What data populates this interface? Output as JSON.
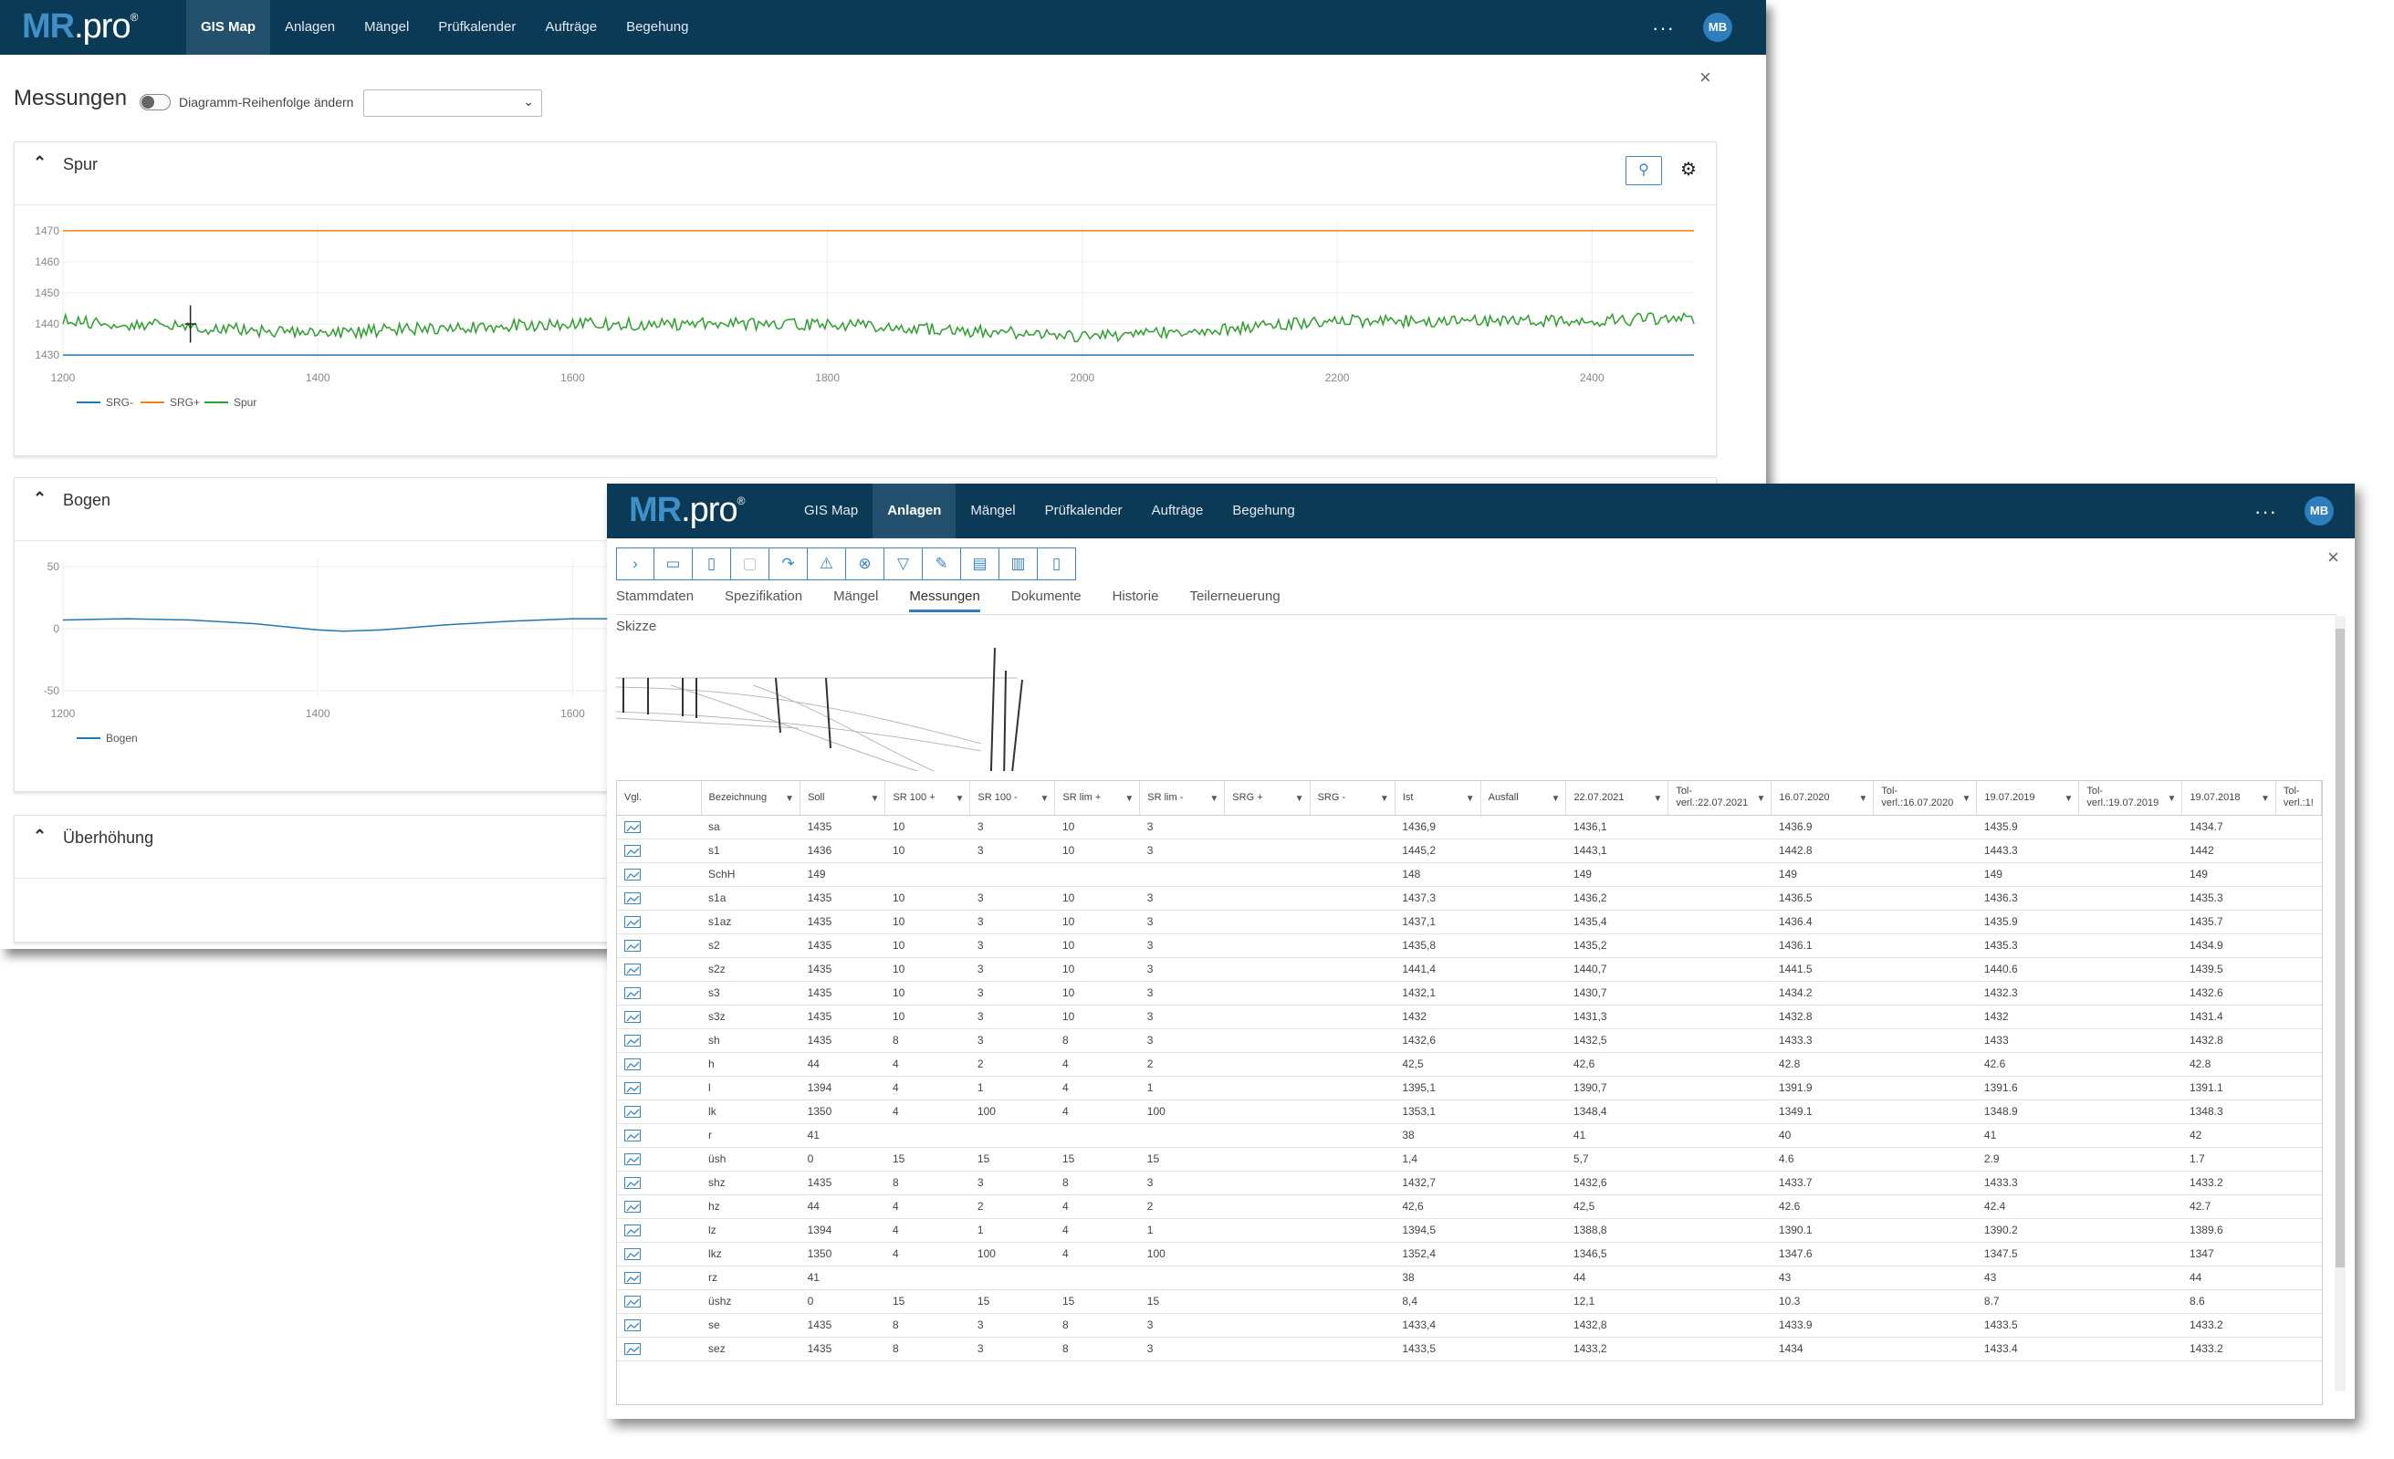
{
  "window1": {
    "logo": {
      "brand": "MR",
      "suffix": ".pro",
      "reg": "®"
    },
    "nav": [
      "GIS Map",
      "Anlagen",
      "Mängel",
      "Prüfkalender",
      "Aufträge",
      "Begehung"
    ],
    "active_nav": "GIS Map",
    "more": "···",
    "avatar": "MB",
    "close": "×",
    "title": "Messungen",
    "toggle_label": "Diagramm-Reihenfolge ändern",
    "select_value": "",
    "panels": [
      {
        "title": "Spur",
        "expanded": true
      },
      {
        "title": "Bogen",
        "expanded": true
      },
      {
        "title": "Überhöhung",
        "expanded": true
      }
    ],
    "colors": {
      "navbar": "#0b3a56",
      "srg_minus": "#1f77b4",
      "srg_plus": "#ff7f0e",
      "spur": "#2ca02c",
      "bogen": "#1f77b4"
    }
  },
  "chart_data": [
    {
      "type": "line",
      "x_ticks": [
        1200,
        1400,
        1600,
        1800,
        2000,
        2200,
        2400
      ],
      "y_ticks": [
        1430,
        1440,
        1450,
        1460,
        1470
      ],
      "xlim": [
        1200,
        2480
      ],
      "ylim": [
        1428,
        1472
      ],
      "series": [
        {
          "name": "SRG-",
          "color": "#1f77b4",
          "x": [
            1200,
            2480
          ],
          "values": [
            1430,
            1430
          ]
        },
        {
          "name": "SRG+",
          "color": "#ff7f0e",
          "x": [
            1200,
            2480
          ],
          "values": [
            1470,
            1470
          ]
        },
        {
          "name": "Spur",
          "color": "#2ca02c",
          "x": [
            1200,
            1300,
            1400,
            1500,
            1600,
            1700,
            1800,
            1900,
            2000,
            2100,
            2200,
            2300,
            2400,
            2480
          ],
          "values": [
            1441,
            1439,
            1437,
            1439,
            1440,
            1440,
            1440,
            1438,
            1436,
            1438,
            1441,
            1441,
            1441,
            1442
          ]
        }
      ],
      "legend_position": "bottom-left",
      "grid": true
    },
    {
      "type": "line",
      "x_ticks": [
        1200,
        1400,
        1600
      ],
      "y_ticks": [
        -50,
        0,
        50
      ],
      "xlim": [
        1200,
        2480
      ],
      "ylim": [
        -55,
        55
      ],
      "series": [
        {
          "name": "Bogen",
          "color": "#1f77b4",
          "x": [
            1200,
            1250,
            1300,
            1350,
            1400,
            1420,
            1450,
            1500,
            1550,
            1600,
            1640
          ],
          "values": [
            7,
            8,
            7,
            4,
            -1,
            -2,
            -1,
            3,
            6,
            8,
            8
          ]
        }
      ],
      "legend_position": "bottom-left",
      "grid": true
    }
  ],
  "window2": {
    "logo": {
      "brand": "MR",
      "suffix": ".pro",
      "reg": "®"
    },
    "nav": [
      "GIS Map",
      "Anlagen",
      "Mängel",
      "Prüfkalender",
      "Aufträge",
      "Begehung"
    ],
    "active_nav": "Anlagen",
    "more": "···",
    "avatar": "MB",
    "close": "×",
    "toolbar_icons": [
      "chevron-right-icon",
      "map-icon",
      "document-icon",
      "save-icon",
      "redo-icon",
      "warning-icon",
      "cancel-circle-icon",
      "filter-icon",
      "edit-list-icon",
      "clipboard-icon",
      "chart-icon",
      "pdf-icon"
    ],
    "tabs": [
      "Stammdaten",
      "Spezifikation",
      "Mängel",
      "Messungen",
      "Dokumente",
      "Historie",
      "Teilerneuerung"
    ],
    "active_tab": "Messungen",
    "skizze_label": "Skizze",
    "columns": [
      "Vgl.",
      "Bezeichnung",
      "Soll",
      "SR 100 +",
      "SR 100 -",
      "SR lim +",
      "SR lim -",
      "SRG +",
      "SRG -",
      "Ist",
      "Ausfall",
      "22.07.2021",
      "Tol-verl.:22.07.2021",
      "16.07.2020",
      "Tol-verl.:16.07.2020",
      "19.07.2019",
      "Tol-verl.:19.07.2019",
      "19.07.2018",
      "Tol-verl.:1!"
    ],
    "rows": [
      [
        "sa",
        "1435",
        "10",
        "3",
        "10",
        "3",
        "",
        "",
        "1436,9",
        "",
        "1436,1",
        "",
        "1436.9",
        "",
        "1435.9",
        "",
        "1434.7",
        ""
      ],
      [
        "s1",
        "1436",
        "10",
        "3",
        "10",
        "3",
        "",
        "",
        "1445,2",
        "",
        "1443,1",
        "",
        "1442.8",
        "",
        "1443.3",
        "",
        "1442",
        ""
      ],
      [
        "SchH",
        "149",
        "",
        "",
        "",
        "",
        "",
        "",
        "148",
        "",
        "149",
        "",
        "149",
        "",
        "149",
        "",
        "149",
        ""
      ],
      [
        "s1a",
        "1435",
        "10",
        "3",
        "10",
        "3",
        "",
        "",
        "1437,3",
        "",
        "1436,2",
        "",
        "1436.5",
        "",
        "1436.3",
        "",
        "1435.3",
        ""
      ],
      [
        "s1az",
        "1435",
        "10",
        "3",
        "10",
        "3",
        "",
        "",
        "1437,1",
        "",
        "1435,4",
        "",
        "1436.4",
        "",
        "1435.9",
        "",
        "1435.7",
        ""
      ],
      [
        "s2",
        "1435",
        "10",
        "3",
        "10",
        "3",
        "",
        "",
        "1435,8",
        "",
        "1435,2",
        "",
        "1436.1",
        "",
        "1435.3",
        "",
        "1434.9",
        ""
      ],
      [
        "s2z",
        "1435",
        "10",
        "3",
        "10",
        "3",
        "",
        "",
        "1441,4",
        "",
        "1440,7",
        "",
        "1441.5",
        "",
        "1440.6",
        "",
        "1439.5",
        ""
      ],
      [
        "s3",
        "1435",
        "10",
        "3",
        "10",
        "3",
        "",
        "",
        "1432,1",
        "",
        "1430,7",
        "",
        "1434.2",
        "",
        "1432.3",
        "",
        "1432.6",
        ""
      ],
      [
        "s3z",
        "1435",
        "10",
        "3",
        "10",
        "3",
        "",
        "",
        "1432",
        "",
        "1431,3",
        "",
        "1432.8",
        "",
        "1432",
        "",
        "1431.4",
        ""
      ],
      [
        "sh",
        "1435",
        "8",
        "3",
        "8",
        "3",
        "",
        "",
        "1432,6",
        "",
        "1432,5",
        "",
        "1433.3",
        "",
        "1433",
        "",
        "1432.8",
        ""
      ],
      [
        "h",
        "44",
        "4",
        "2",
        "4",
        "2",
        "",
        "",
        "42,5",
        "",
        "42,6",
        "",
        "42.8",
        "",
        "42.6",
        "",
        "42.8",
        ""
      ],
      [
        "l",
        "1394",
        "4",
        "1",
        "4",
        "1",
        "",
        "",
        "1395,1",
        "",
        "1390,7",
        "",
        "1391.9",
        "",
        "1391.6",
        "",
        "1391.1",
        ""
      ],
      [
        "lk",
        "1350",
        "4",
        "100",
        "4",
        "100",
        "",
        "",
        "1353,1",
        "",
        "1348,4",
        "",
        "1349.1",
        "",
        "1348.9",
        "",
        "1348.3",
        ""
      ],
      [
        "r",
        "41",
        "",
        "",
        "",
        "",
        "",
        "",
        "38",
        "",
        "41",
        "",
        "40",
        "",
        "41",
        "",
        "42",
        ""
      ],
      [
        "üsh",
        "0",
        "15",
        "15",
        "15",
        "15",
        "",
        "",
        "1,4",
        "",
        "5,7",
        "",
        "4.6",
        "",
        "2.9",
        "",
        "1.7",
        ""
      ],
      [
        "shz",
        "1435",
        "8",
        "3",
        "8",
        "3",
        "",
        "",
        "1432,7",
        "",
        "1432,6",
        "",
        "1433.7",
        "",
        "1433.3",
        "",
        "1433.2",
        ""
      ],
      [
        "hz",
        "44",
        "4",
        "2",
        "4",
        "2",
        "",
        "",
        "42,6",
        "",
        "42,5",
        "",
        "42.6",
        "",
        "42.4",
        "",
        "42.7",
        ""
      ],
      [
        "lz",
        "1394",
        "4",
        "1",
        "4",
        "1",
        "",
        "",
        "1394,5",
        "",
        "1388,8",
        "",
        "1390.1",
        "",
        "1390.2",
        "",
        "1389.6",
        ""
      ],
      [
        "lkz",
        "1350",
        "4",
        "100",
        "4",
        "100",
        "",
        "",
        "1352,4",
        "",
        "1346,5",
        "",
        "1347.6",
        "",
        "1347.5",
        "",
        "1347",
        ""
      ],
      [
        "rz",
        "41",
        "",
        "",
        "",
        "",
        "",
        "",
        "38",
        "",
        "44",
        "",
        "43",
        "",
        "43",
        "",
        "44",
        ""
      ],
      [
        "üshz",
        "0",
        "15",
        "15",
        "15",
        "15",
        "",
        "",
        "8,4",
        "",
        "12,1",
        "",
        "10.3",
        "",
        "8.7",
        "",
        "8.6",
        ""
      ],
      [
        "se",
        "1435",
        "8",
        "3",
        "8",
        "3",
        "",
        "",
        "1433,4",
        "",
        "1432,8",
        "",
        "1433.9",
        "",
        "1433.5",
        "",
        "1433.2",
        ""
      ],
      [
        "sez",
        "1435",
        "8",
        "3",
        "8",
        "3",
        "",
        "",
        "1433,5",
        "",
        "1433,2",
        "",
        "1434",
        "",
        "1433.4",
        "",
        "1433.2",
        ""
      ]
    ]
  }
}
